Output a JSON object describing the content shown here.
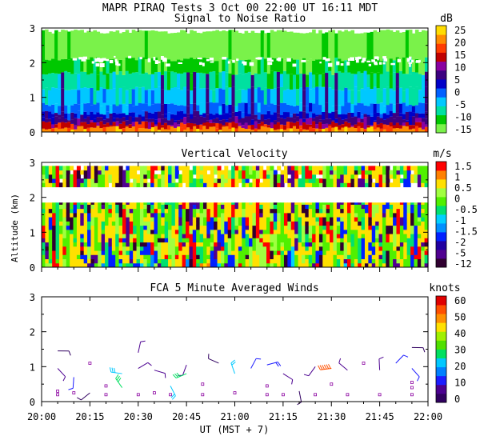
{
  "header": {
    "title": "MAPR PIRAQ Tests  3 Oct 00  22:00 UT  16:11  MDT"
  },
  "colors": {
    "snr": [
      "#7af24a",
      "#00c800",
      "#00e0a0",
      "#00c8ff",
      "#0060ff",
      "#0000c8",
      "#3c0080",
      "#8a00a0",
      "#c00000",
      "#ff3c00",
      "#ff8c00",
      "#ffdc00"
    ],
    "vel": [
      "#300030",
      "#500090",
      "#2000a0",
      "#0020ff",
      "#0090ff",
      "#00d0ff",
      "#00e070",
      "#50f000",
      "#a0ff40",
      "#ffe000",
      "#ff8000",
      "#ff0000"
    ],
    "wind": [
      "#300060",
      "#4b0090",
      "#1c1cff",
      "#0080ff",
      "#00c8ff",
      "#00e060",
      "#50e000",
      "#a0f000",
      "#ffe000",
      "#ff9000",
      "#ff5000",
      "#e00000"
    ]
  },
  "chart_data": [
    {
      "type": "heatmap",
      "title": "Signal to Noise Ratio",
      "units": "dB",
      "ylabel": "",
      "ylim": [
        0,
        3
      ],
      "yticks": [
        "0",
        "1",
        "2",
        "3"
      ],
      "xlim": [
        "20:00",
        "22:00"
      ],
      "colorbar_labels": [
        "25",
        "20",
        "15",
        "10",
        "5",
        "0",
        "-5",
        "-10",
        "-15"
      ],
      "profile": [
        {
          "alt_top": 0.12,
          "level": 10
        },
        {
          "alt_top": 0.25,
          "level": 8
        },
        {
          "alt_top": 0.4,
          "level": 6
        },
        {
          "alt_top": 0.55,
          "level": 5
        },
        {
          "alt_top": 0.8,
          "level": 4
        },
        {
          "alt_top": 1.25,
          "level": 3
        },
        {
          "alt_top": 1.7,
          "level": 2
        },
        {
          "alt_top": 2.1,
          "level": 1
        },
        {
          "alt_top": 2.9,
          "level": 0
        }
      ]
    },
    {
      "type": "heatmap",
      "title": "Vertical Velocity",
      "units": "m/s",
      "ylabel": "Altitude (km)",
      "ylim": [
        0,
        3
      ],
      "yticks": [
        "0",
        "1",
        "2",
        "3"
      ],
      "xlim": [
        "20:00",
        "22:00"
      ],
      "colorbar_labels": [
        "1.5",
        "1",
        "0.5",
        "0",
        "-0.5",
        "-1",
        "-1.5",
        "-2",
        "-5",
        "-12"
      ],
      "data_bands": [
        [
          0,
          1.85
        ],
        [
          2.3,
          2.9
        ]
      ]
    },
    {
      "type": "scatter",
      "title": "FCA 5 Minute Averaged Winds",
      "units": "knots",
      "ylim": [
        0,
        3
      ],
      "yticks": [
        "0",
        "1",
        "2",
        "3"
      ],
      "xlabel": "UT  (MST + 7)",
      "xtick_labels": [
        "20:00",
        "20:15",
        "20:30",
        "20:45",
        "21:00",
        "21:15",
        "21:30",
        "21:45",
        "22:00"
      ],
      "colorbar_labels": [
        "60",
        "50",
        "40",
        "30",
        "20",
        "10",
        "0"
      ],
      "barbs": [
        {
          "t": "20:05",
          "alt": 1.45,
          "speed": 5
        },
        {
          "t": "20:05",
          "alt": 0.95,
          "speed": 8
        },
        {
          "t": "20:10",
          "alt": 0.7,
          "speed": 12
        },
        {
          "t": "20:15",
          "alt": 0.25,
          "speed": 4
        },
        {
          "t": "20:25",
          "alt": 0.8,
          "speed": 25
        },
        {
          "t": "20:25",
          "alt": 0.4,
          "speed": 28
        },
        {
          "t": "20:30",
          "alt": 1.4,
          "speed": 6
        },
        {
          "t": "20:30",
          "alt": 0.95,
          "speed": 10
        },
        {
          "t": "20:35",
          "alt": 0.9,
          "speed": 9
        },
        {
          "t": "20:40",
          "alt": 0.45,
          "speed": 22
        },
        {
          "t": "20:45",
          "alt": 1.05,
          "speed": 7
        },
        {
          "t": "20:45",
          "alt": 0.8,
          "speed": 32
        },
        {
          "t": "20:55",
          "alt": 1.1,
          "speed": 5
        },
        {
          "t": "21:00",
          "alt": 0.8,
          "speed": 24
        },
        {
          "t": "21:05",
          "alt": 0.95,
          "speed": 14
        },
        {
          "t": "21:10",
          "alt": 1.05,
          "speed": 15
        },
        {
          "t": "21:15",
          "alt": 0.8,
          "speed": 8
        },
        {
          "t": "21:20",
          "alt": 0.3,
          "speed": 5
        },
        {
          "t": "21:25",
          "alt": 1.0,
          "speed": 6
        },
        {
          "t": "21:30",
          "alt": 0.95,
          "speed": 55
        },
        {
          "t": "21:35",
          "alt": 0.9,
          "speed": 9
        },
        {
          "t": "21:45",
          "alt": 0.9,
          "speed": 10
        },
        {
          "t": "21:50",
          "alt": 1.1,
          "speed": 11
        },
        {
          "t": "21:55",
          "alt": 1.55,
          "speed": 4
        },
        {
          "t": "21:55",
          "alt": 0.95,
          "speed": 12
        }
      ],
      "calm_points": [
        {
          "t": "20:05",
          "alt": 0.2
        },
        {
          "t": "20:05",
          "alt": 0.3
        },
        {
          "t": "20:10",
          "alt": 0.25
        },
        {
          "t": "20:15",
          "alt": 1.1
        },
        {
          "t": "20:20",
          "alt": 0.2
        },
        {
          "t": "20:20",
          "alt": 0.45
        },
        {
          "t": "20:30",
          "alt": 0.2
        },
        {
          "t": "20:35",
          "alt": 0.25
        },
        {
          "t": "20:40",
          "alt": 0.2
        },
        {
          "t": "20:50",
          "alt": 0.2
        },
        {
          "t": "20:50",
          "alt": 0.5
        },
        {
          "t": "21:00",
          "alt": 0.25
        },
        {
          "t": "21:10",
          "alt": 0.2
        },
        {
          "t": "21:10",
          "alt": 0.45
        },
        {
          "t": "21:15",
          "alt": 0.2
        },
        {
          "t": "21:25",
          "alt": 0.2
        },
        {
          "t": "21:30",
          "alt": 0.5
        },
        {
          "t": "21:35",
          "alt": 0.2
        },
        {
          "t": "21:40",
          "alt": 1.1
        },
        {
          "t": "21:45",
          "alt": 0.2
        },
        {
          "t": "21:55",
          "alt": 0.2
        },
        {
          "t": "21:55",
          "alt": 0.55
        },
        {
          "t": "21:55",
          "alt": 0.4
        }
      ]
    }
  ]
}
